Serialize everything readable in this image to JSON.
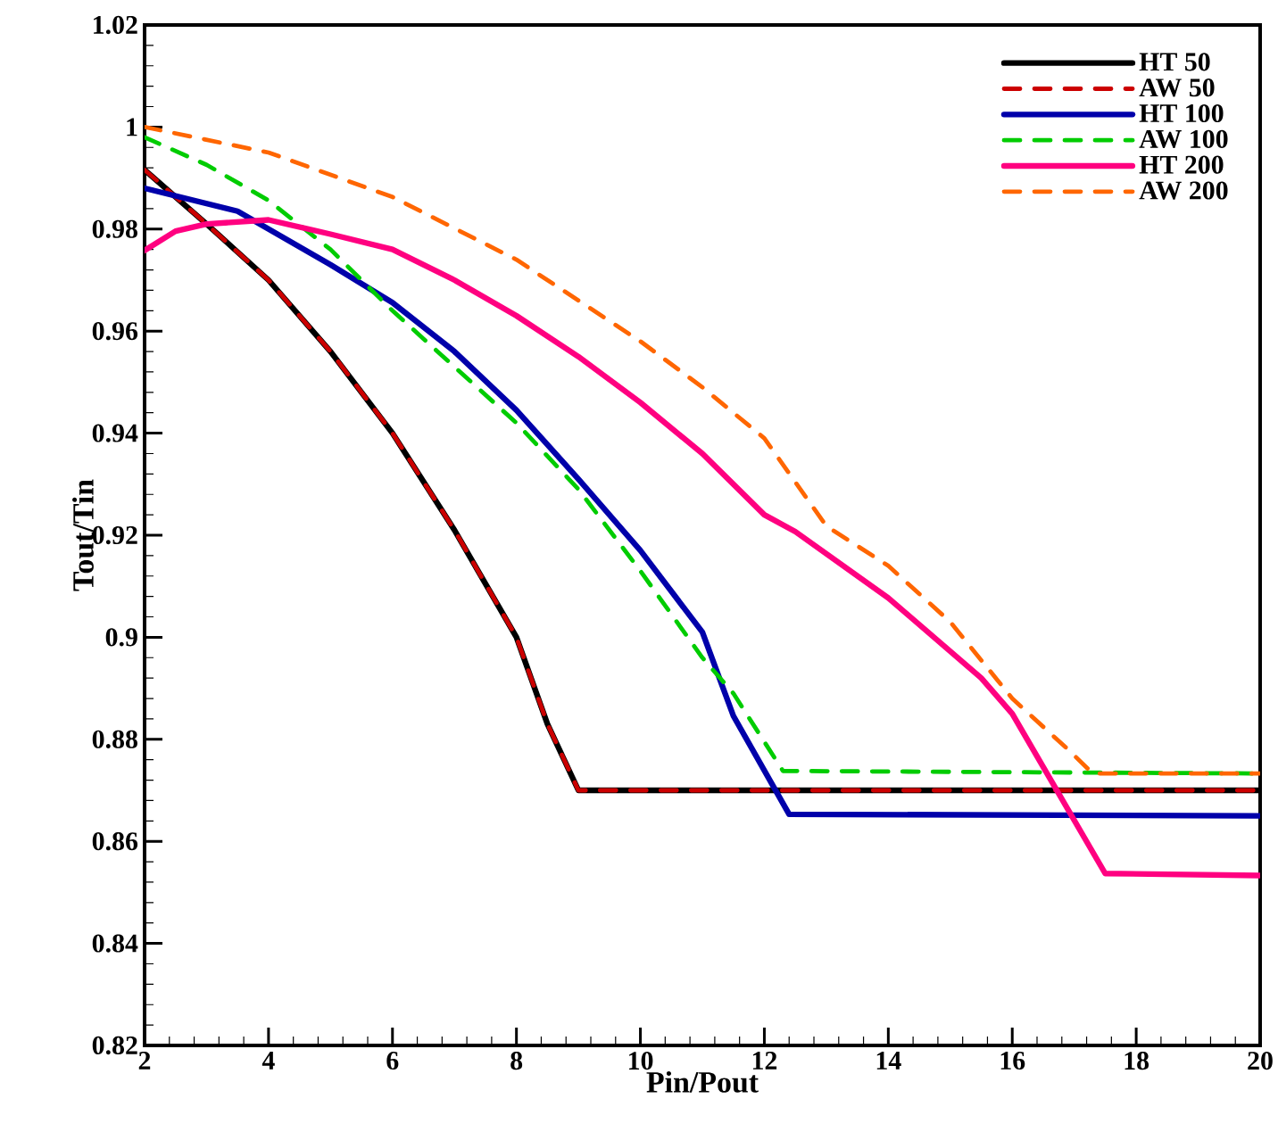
{
  "chart_data": {
    "type": "line",
    "xlabel": "Pin/Pout",
    "ylabel": "Tout/Tin",
    "xlim": [
      2,
      20
    ],
    "ylim": [
      0.82,
      1.02
    ],
    "xticks": [
      2,
      4,
      6,
      8,
      10,
      12,
      14,
      16,
      18,
      20
    ],
    "yticks": [
      0.82,
      0.84,
      0.86,
      0.88,
      0.9,
      0.92,
      0.94,
      0.96,
      0.98,
      1,
      1.02
    ],
    "grid": false,
    "legend": "top right",
    "marker": "none",
    "series": [
      {
        "name": "HT 50",
        "color": "#000000",
        "line_style": "solid",
        "x": [
          2,
          3,
          4,
          5,
          6,
          7,
          8,
          8.5,
          9,
          20
        ],
        "values": [
          0.9916,
          0.981,
          0.97,
          0.956,
          0.94,
          0.921,
          0.9,
          0.883,
          0.87,
          0.87
        ]
      },
      {
        "name": "AW 50",
        "color": "#cc0000",
        "line_style": "dashed",
        "x": [
          2,
          3,
          4,
          5,
          6,
          7,
          8,
          8.5,
          9,
          20
        ],
        "values": [
          0.9916,
          0.981,
          0.97,
          0.956,
          0.94,
          0.921,
          0.9,
          0.883,
          0.87,
          0.87
        ]
      },
      {
        "name": "HT 100",
        "color": "#0000aa",
        "line_style": "solid",
        "x": [
          2,
          3.5,
          4,
          5,
          6,
          7,
          8,
          9,
          10,
          11,
          11.5,
          12.4,
          20
        ],
        "values": [
          0.988,
          0.9835,
          0.98,
          0.973,
          0.9656,
          0.956,
          0.9445,
          0.931,
          0.917,
          0.901,
          0.8846,
          0.8653,
          0.865
        ]
      },
      {
        "name": "AW 100",
        "color": "#00cc00",
        "line_style": "dashed",
        "x": [
          2,
          3,
          4,
          5,
          6,
          7,
          8,
          9,
          10,
          11,
          11.5,
          12.3,
          20
        ],
        "values": [
          0.998,
          0.9926,
          0.9856,
          0.976,
          0.964,
          0.953,
          0.942,
          0.929,
          0.913,
          0.896,
          0.889,
          0.8738,
          0.8733
        ]
      },
      {
        "name": "HT 200",
        "color": "#ff0080",
        "line_style": "solid",
        "x": [
          2,
          2.5,
          3,
          4,
          5,
          6,
          7,
          8,
          9,
          10,
          11,
          12,
          12.5,
          14,
          15.5,
          16,
          17.5,
          20
        ],
        "values": [
          0.9758,
          0.9796,
          0.981,
          0.9818,
          0.979,
          0.976,
          0.97,
          0.963,
          0.955,
          0.946,
          0.936,
          0.924,
          0.9207,
          0.9077,
          0.892,
          0.885,
          0.8537,
          0.8533
        ]
      },
      {
        "name": "AW 200",
        "color": "#ff6600",
        "line_style": "dashed",
        "x": [
          2,
          4,
          6,
          8,
          9,
          10,
          11,
          12,
          13,
          14,
          15,
          16,
          16.9,
          17.3,
          20
        ],
        "values": [
          1.0,
          0.995,
          0.9863,
          0.974,
          0.966,
          0.958,
          0.949,
          0.939,
          0.9218,
          0.914,
          0.903,
          0.888,
          0.878,
          0.8733,
          0.8733
        ]
      }
    ]
  }
}
